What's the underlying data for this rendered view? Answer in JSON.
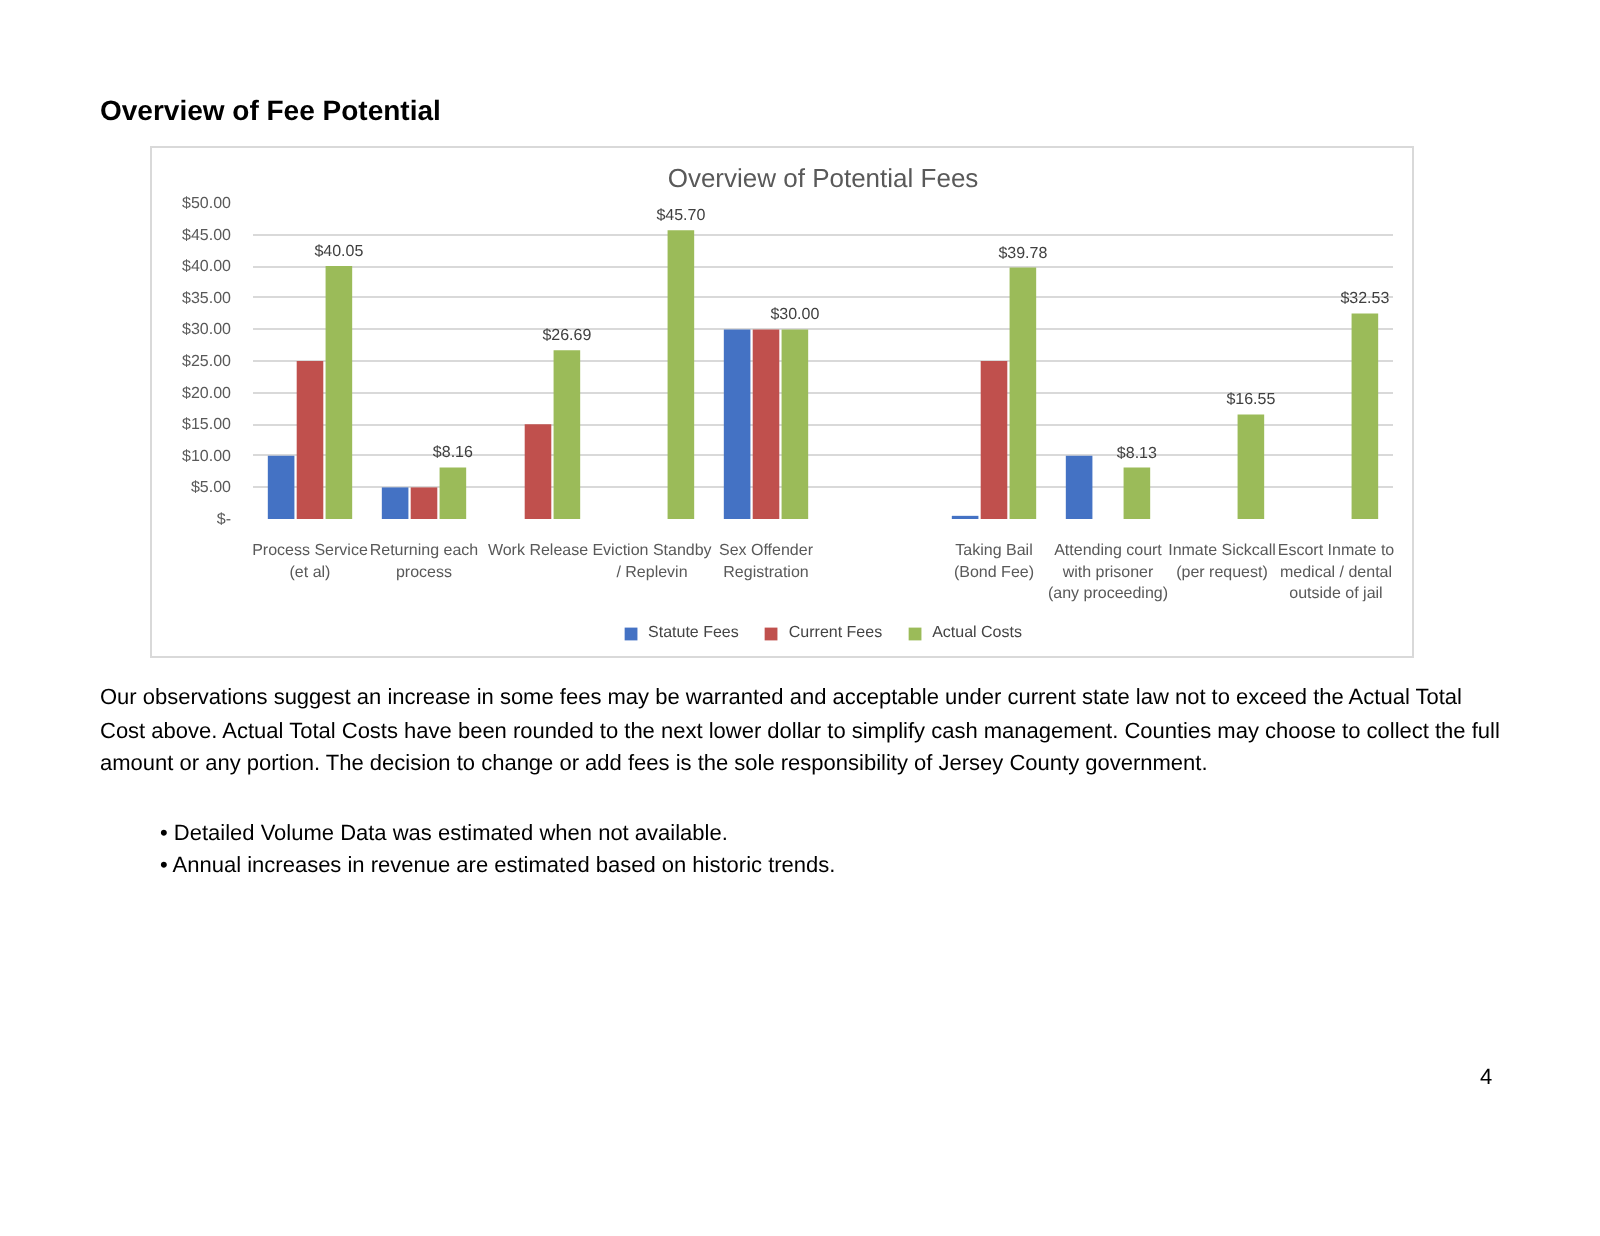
{
  "chart_data": {
    "type": "bar",
    "title": "Overview of Potential Fees",
    "categories": [
      "Process Service (et al)",
      "Returning each process",
      "Work Release",
      "Eviction Standby / Replevin",
      "Sex Offender Registration",
      null,
      "Taking Bail (Bond Fee)",
      "Attending court with prisoner (any proceeding)",
      "Inmate Sickcall (per request)",
      "Escort Inmate to medical / dental outside of jail"
    ],
    "series": [
      {
        "name": "Statute Fees",
        "color": "#4472c4",
        "values": [
          10,
          5,
          null,
          null,
          30,
          null,
          0.5,
          10,
          null,
          null
        ]
      },
      {
        "name": "Current Fees",
        "color": "#c0504d",
        "values": [
          25,
          5,
          15,
          null,
          30,
          null,
          25,
          null,
          null,
          null
        ]
      },
      {
        "name": "Actual Costs",
        "color": "#9bbb59",
        "values": [
          40.05,
          8.16,
          26.69,
          45.7,
          30.0,
          null,
          39.78,
          8.13,
          16.55,
          32.53
        ],
        "value_labels": [
          "$40.05",
          "$8.16",
          "$26.69",
          "$45.70",
          "$30.00",
          null,
          "$39.78",
          "$8.13",
          "$16.55",
          "$32.53"
        ]
      }
    ],
    "ylim": [
      0,
      50
    ],
    "yticks": [
      {
        "value": 0,
        "label": "$-"
      },
      {
        "value": 5,
        "label": "$5.00"
      },
      {
        "value": 10,
        "label": "$10.00"
      },
      {
        "value": 15,
        "label": "$15.00"
      },
      {
        "value": 20,
        "label": "$20.00"
      },
      {
        "value": 25,
        "label": "$25.00"
      },
      {
        "value": 30,
        "label": "$30.00"
      },
      {
        "value": 35,
        "label": "$35.00"
      },
      {
        "value": 40,
        "label": "$40.00"
      },
      {
        "value": 45,
        "label": "$45.00"
      },
      {
        "value": 50,
        "label": "$50.00"
      }
    ],
    "grid": "y",
    "legend": "bottom",
    "annotations": [
      "Overview of Fee Potential",
      "Our observations suggest an increase in some fees may be warranted and acceptable under current state law not to exceed the Actual Total Cost above. Actual Total Costs have been rounded to the next lower dollar to simplify cash management.  Counties may choose to collect the full amount or any portion. The decision to change or add fees is the sole responsibility of Jersey County government.",
      "• Detailed Volume Data was estimated when not available.",
      "• Annual increases in revenue are estimated based on historic trends.",
      "4"
    ]
  }
}
